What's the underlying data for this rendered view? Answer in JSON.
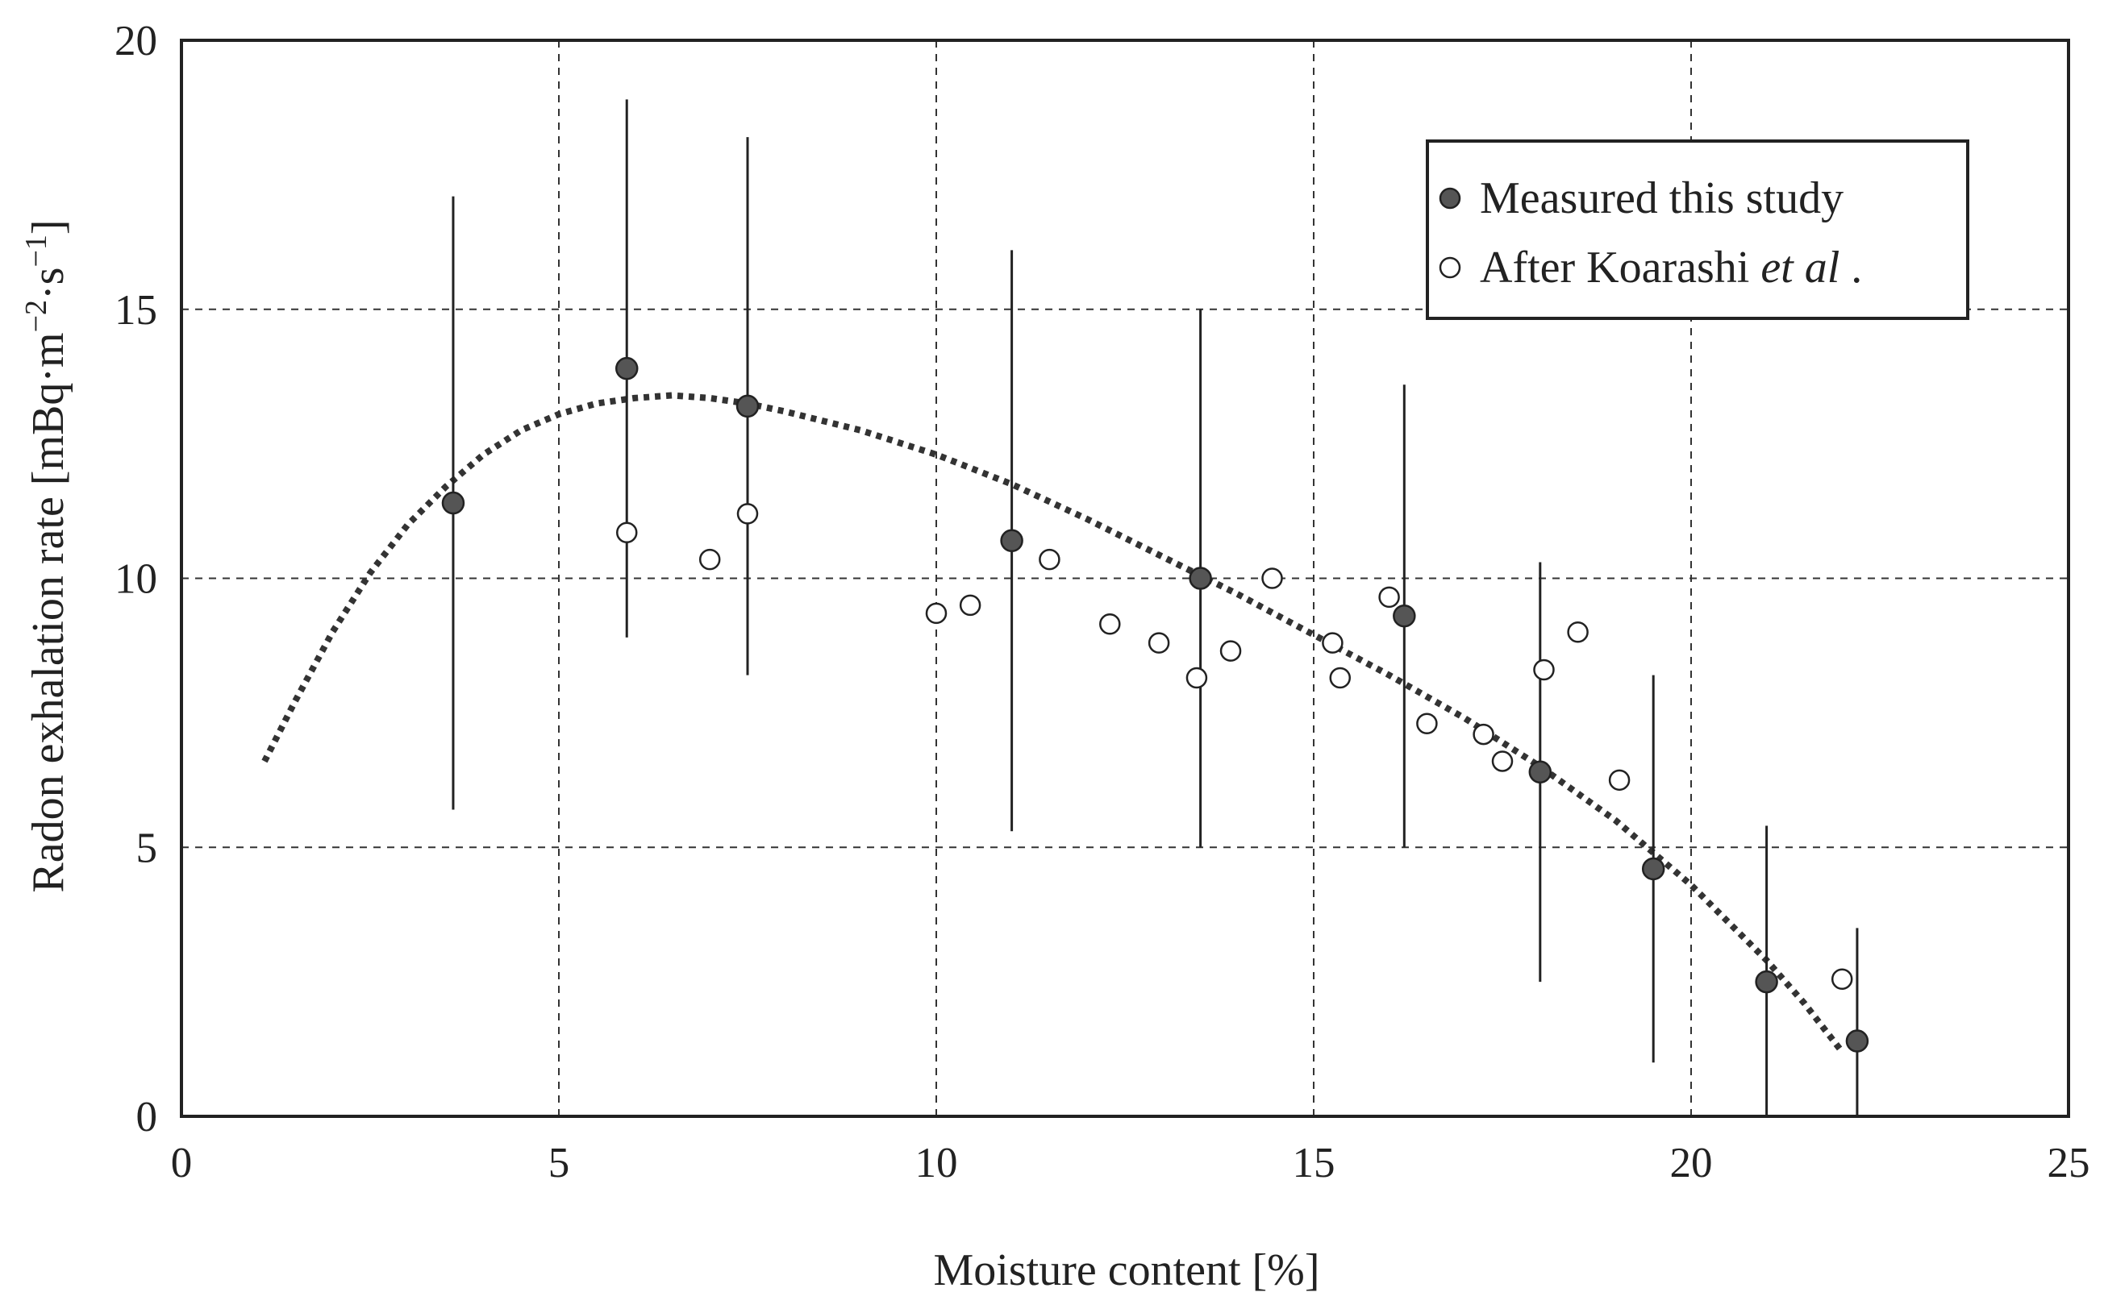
{
  "chart_data": {
    "type": "scatter",
    "xlabel": "Moisture content [%]",
    "ylabel": {
      "main": "Radon exhalation rate [mBq·m",
      "exp1": "−2",
      "mid": "·s",
      "exp2": "−1",
      "end": "]"
    },
    "xlim": [
      0,
      25
    ],
    "ylim": [
      0,
      20
    ],
    "x_ticks": [
      "0",
      "5",
      "10",
      "15",
      "20",
      "25"
    ],
    "y_ticks": [
      "0",
      "5",
      "10",
      "15",
      "20"
    ],
    "grid": "dashed",
    "legend_position": "top-right",
    "legend": {
      "measured": "Measured this study",
      "koarashi_prefix": "After Koarashi ",
      "koarashi_italic": "et al",
      "koarashi_suffix": " ."
    },
    "series": [
      {
        "name": "Measured this study",
        "marker": "filled-circle",
        "color": "#555555",
        "points": [
          {
            "x": 3.6,
            "y": 11.4,
            "err_low": 5.7,
            "err_high": 17.1
          },
          {
            "x": 5.9,
            "y": 13.9,
            "err_low": 8.9,
            "err_high": 18.9
          },
          {
            "x": 7.5,
            "y": 13.2,
            "err_low": 8.2,
            "err_high": 18.2
          },
          {
            "x": 11.0,
            "y": 10.7,
            "err_low": 5.3,
            "err_high": 16.1
          },
          {
            "x": 13.5,
            "y": 10.0,
            "err_low": 5.0,
            "err_high": 15.0
          },
          {
            "x": 16.2,
            "y": 9.3,
            "err_low": 5.0,
            "err_high": 13.6
          },
          {
            "x": 18.0,
            "y": 6.4,
            "err_low": 2.5,
            "err_high": 10.3
          },
          {
            "x": 19.5,
            "y": 4.6,
            "err_low": 1.0,
            "err_high": 8.2
          },
          {
            "x": 21.0,
            "y": 2.5,
            "err_low": 0.0,
            "err_high": 5.4
          },
          {
            "x": 22.2,
            "y": 1.4,
            "err_low": 0.0,
            "err_high": 3.5
          }
        ]
      },
      {
        "name": "After Koarashi et al .",
        "marker": "open-circle",
        "color": "#222222",
        "points": [
          {
            "x": 5.9,
            "y": 10.85
          },
          {
            "x": 7.0,
            "y": 10.35
          },
          {
            "x": 7.5,
            "y": 11.2
          },
          {
            "x": 10.0,
            "y": 9.35
          },
          {
            "x": 10.45,
            "y": 9.5
          },
          {
            "x": 11.5,
            "y": 10.35
          },
          {
            "x": 12.3,
            "y": 9.15
          },
          {
            "x": 12.95,
            "y": 8.8
          },
          {
            "x": 13.45,
            "y": 8.15
          },
          {
            "x": 13.9,
            "y": 8.65
          },
          {
            "x": 14.45,
            "y": 10.0
          },
          {
            "x": 15.25,
            "y": 8.8
          },
          {
            "x": 15.35,
            "y": 8.15
          },
          {
            "x": 16.0,
            "y": 9.65
          },
          {
            "x": 16.5,
            "y": 7.3
          },
          {
            "x": 17.25,
            "y": 7.1
          },
          {
            "x": 17.5,
            "y": 6.6
          },
          {
            "x": 18.05,
            "y": 8.3
          },
          {
            "x": 18.5,
            "y": 9.0
          },
          {
            "x": 19.05,
            "y": 6.25
          },
          {
            "x": 22.0,
            "y": 2.55
          }
        ]
      }
    ],
    "fit_curve": {
      "style": "dotted",
      "color": "#333333",
      "points": [
        {
          "x": 1.1,
          "y": 6.6
        },
        {
          "x": 1.5,
          "y": 7.7
        },
        {
          "x": 2.0,
          "y": 9.0
        },
        {
          "x": 2.5,
          "y": 10.1
        },
        {
          "x": 3.0,
          "y": 11.0
        },
        {
          "x": 3.5,
          "y": 11.7
        },
        {
          "x": 4.0,
          "y": 12.3
        },
        {
          "x": 4.5,
          "y": 12.75
        },
        {
          "x": 5.0,
          "y": 13.05
        },
        {
          "x": 5.5,
          "y": 13.25
        },
        {
          "x": 6.0,
          "y": 13.35
        },
        {
          "x": 6.5,
          "y": 13.4
        },
        {
          "x": 7.0,
          "y": 13.35
        },
        {
          "x": 7.5,
          "y": 13.25
        },
        {
          "x": 8.0,
          "y": 13.1
        },
        {
          "x": 9.0,
          "y": 12.75
        },
        {
          "x": 10.0,
          "y": 12.3
        },
        {
          "x": 11.0,
          "y": 11.75
        },
        {
          "x": 12.0,
          "y": 11.1
        },
        {
          "x": 13.0,
          "y": 10.4
        },
        {
          "x": 14.0,
          "y": 9.7
        },
        {
          "x": 15.0,
          "y": 8.95
        },
        {
          "x": 16.0,
          "y": 8.2
        },
        {
          "x": 17.0,
          "y": 7.4
        },
        {
          "x": 18.0,
          "y": 6.5
        },
        {
          "x": 19.0,
          "y": 5.5
        },
        {
          "x": 20.0,
          "y": 4.3
        },
        {
          "x": 21.0,
          "y": 2.9
        },
        {
          "x": 21.5,
          "y": 2.1
        },
        {
          "x": 22.0,
          "y": 1.2
        }
      ]
    }
  }
}
